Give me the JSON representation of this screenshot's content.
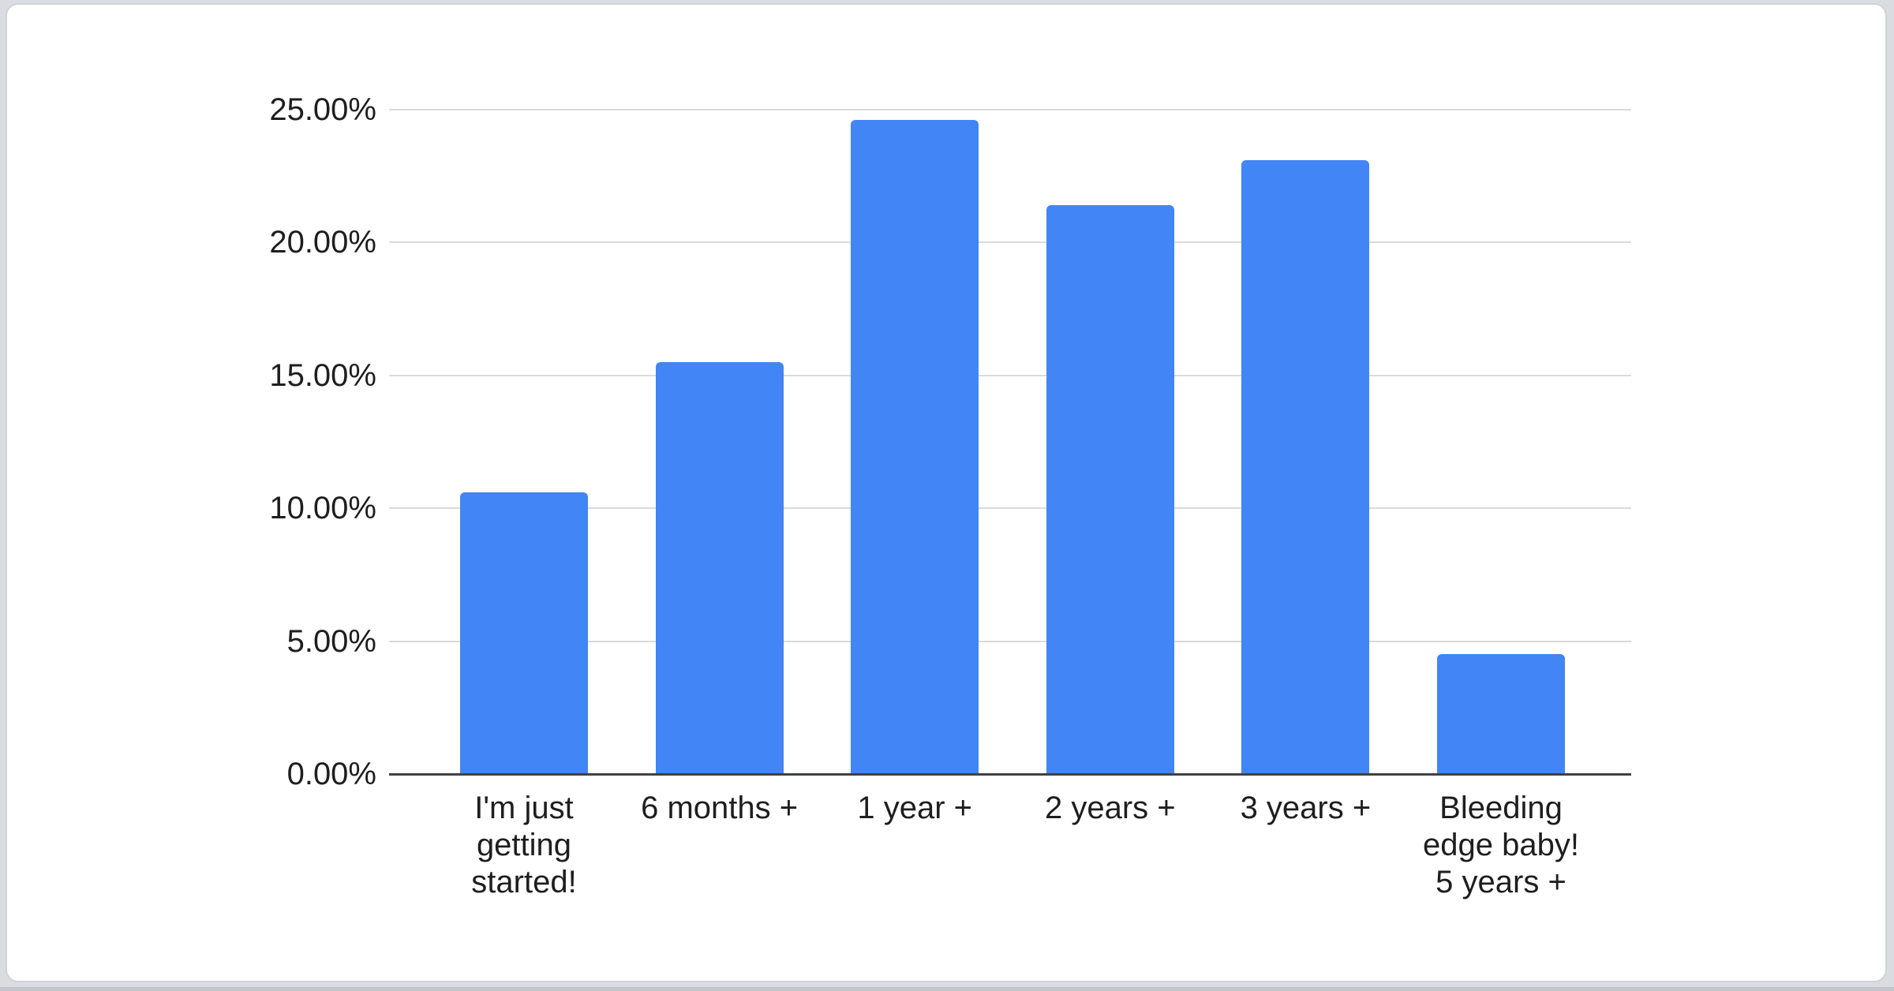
{
  "page": {
    "background_color": "#d9dde2",
    "card_background": "#ffffff",
    "card_border_color": "#cfd3d8",
    "bottom_edge_color": "#c2c6cb"
  },
  "chart_data": {
    "type": "bar",
    "title": "",
    "categories": [
      "I'm just getting started!",
      "6 months +",
      "1 year +",
      "2 years +",
      "3 years +",
      "Bleeding edge baby! 5 years +"
    ],
    "values": [
      10.6,
      15.5,
      24.6,
      21.4,
      23.1,
      4.5
    ],
    "value_unit": "%",
    "x_tick_display": [
      "I'm just\ngetting\nstarted!",
      "6 months +",
      "1 year +",
      "2 years +",
      "3 years +",
      "Bleeding\nedge baby!\n5 years +"
    ],
    "y_ticks": [
      "25.00%",
      "20.00%",
      "15.00%",
      "10.00%",
      "5.00%",
      "0.00%"
    ],
    "y_tick_values": [
      25,
      20,
      15,
      10,
      5,
      0
    ],
    "ylim": [
      0,
      25
    ],
    "grid": true,
    "legend": "none",
    "bar_color": "#4285f4",
    "gridline_color": "#dadada",
    "axis_color": "#3f4144",
    "text_color": "#1e1e1e"
  }
}
